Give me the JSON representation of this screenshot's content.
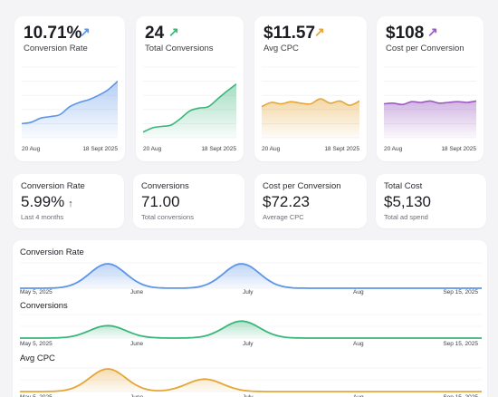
{
  "kpis": [
    {
      "value": "10.71%",
      "arrow": "↗",
      "label": "Conversion Rate",
      "color": "#5d95e8",
      "start": "20 Aug",
      "end": "18 Sept 2025",
      "series": [
        20,
        22,
        28,
        30,
        33,
        44,
        50,
        54,
        60,
        68,
        80
      ]
    },
    {
      "value": "24",
      "arrow": "↗",
      "label": "Total Conversions",
      "color": "#3bb57a",
      "start": "20 Aug",
      "end": "18 Sept 2025",
      "series": [
        8,
        14,
        16,
        18,
        27,
        38,
        42,
        44,
        55,
        66,
        76
      ]
    },
    {
      "value": "$11.57",
      "arrow": "↗",
      "label": "Avg CPC",
      "color": "#e5a637",
      "start": "20 Aug",
      "end": "18 Sept 2025",
      "series": [
        44,
        50,
        48,
        51,
        49,
        48,
        55,
        49,
        52,
        46,
        52
      ]
    },
    {
      "value": "$108",
      "arrow": "↗",
      "label": "Cost per Conversion",
      "color": "#9b5bbf",
      "start": "20 Aug",
      "end": "18 Sept 2025",
      "series": [
        48,
        49,
        47,
        51,
        50,
        52,
        49,
        50,
        51,
        50,
        52
      ]
    }
  ],
  "stats": [
    {
      "label": "Conversion Rate",
      "value": "5.99%",
      "arrow": "↑",
      "sub": "Last 4 months"
    },
    {
      "label": "Conversions",
      "value": "71.00",
      "arrow": "",
      "sub": "Total conversions"
    },
    {
      "label": "Cost per Conversion",
      "value": "$72.23",
      "arrow": "",
      "sub": "Average CPC"
    },
    {
      "label": "Total Cost",
      "value": "$5,130",
      "arrow": "",
      "sub": "Total ad spend"
    }
  ],
  "timeline_axis": [
    "May 5, 2025",
    "June",
    "July",
    "Aug",
    "Sep 15, 2025"
  ],
  "timelines": [
    {
      "title": "Conversion Rate",
      "color": "#5d95e8",
      "peaks": [
        [
          0.19,
          1.0
        ],
        [
          0.48,
          1.0
        ]
      ]
    },
    {
      "title": "Conversions",
      "color": "#3bb57a",
      "peaks": [
        [
          0.19,
          0.55
        ],
        [
          0.48,
          0.75
        ]
      ]
    },
    {
      "title": "Avg CPC",
      "color": "#e5a637",
      "peaks": [
        [
          0.19,
          1.0
        ],
        [
          0.4,
          0.55
        ]
      ]
    }
  ]
}
